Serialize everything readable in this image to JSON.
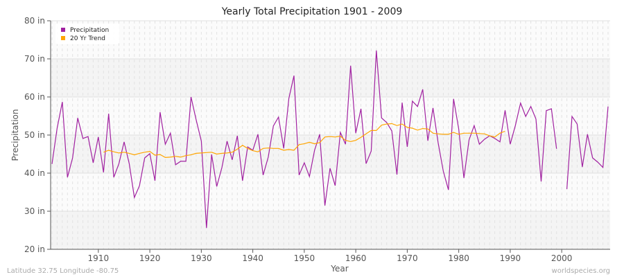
{
  "chart_data": {
    "type": "line",
    "title": "Yearly Total Precipitation 1901 - 2009",
    "xlabel": "Year",
    "ylabel": "Precipitation",
    "xlim": [
      1901,
      2009
    ],
    "ylim": [
      20,
      80
    ],
    "y_ticks": [
      20,
      30,
      40,
      50,
      60,
      70,
      80
    ],
    "y_tick_labels": [
      "20 in",
      "30 in",
      "40 in",
      "50 in",
      "60 in",
      "70 in",
      "80 in"
    ],
    "x_ticks": [
      1910,
      1920,
      1930,
      1940,
      1950,
      1960,
      1970,
      1980,
      1990,
      2000
    ],
    "x_tick_labels": [
      "1910",
      "1920",
      "1930",
      "1940",
      "1950",
      "1960",
      "1970",
      "1980",
      "1990",
      "2000"
    ],
    "grid": true,
    "legend_position": "top-left",
    "series": [
      {
        "name": "Precipitation",
        "color": "#a020a0",
        "start_year": 1901,
        "values": [
          42.4,
          51.8,
          58.7,
          38.9,
          44.0,
          54.5,
          49.1,
          49.6,
          42.7,
          49.5,
          40.2,
          55.6,
          38.9,
          42.5,
          48.2,
          42.5,
          33.6,
          36.7,
          44.0,
          45.1,
          38.0,
          56.0,
          47.6,
          50.5,
          42.2,
          43.1,
          43.1,
          60.0,
          54.0,
          48.4,
          25.6,
          44.9,
          36.5,
          41.5,
          48.4,
          43.5,
          49.8,
          38.0,
          46.9,
          46.0,
          50.2,
          39.5,
          44.2,
          52.4,
          54.7,
          46.5,
          59.6,
          65.6,
          39.5,
          42.7,
          39.1,
          46.0,
          50.2,
          31.5,
          41.3,
          36.7,
          50.7,
          47.6,
          68.2,
          50.5,
          56.9,
          42.5,
          45.8,
          72.2,
          54.5,
          53.3,
          51.1,
          39.6,
          58.5,
          46.9,
          58.9,
          57.5,
          62.0,
          48.5,
          57.1,
          48.0,
          40.5,
          35.6,
          59.5,
          51.6,
          38.7,
          48.7,
          52.5,
          47.6,
          48.9,
          49.8,
          49.1,
          48.2,
          56.5,
          47.6,
          52.5,
          58.4,
          54.9,
          57.5,
          54.2,
          37.8,
          56.4,
          56.9,
          46.4,
          null,
          35.8,
          54.9,
          52.9,
          41.6,
          50.2,
          44.0,
          42.9,
          41.5,
          57.5
        ]
      },
      {
        "name": "20 Yr Trend",
        "color": "#ffa500",
        "start_year": 1911,
        "values": [
          45.5,
          46.0,
          45.6,
          45.3,
          45.5,
          45.2,
          44.8,
          45.2,
          45.5,
          45.7,
          44.7,
          44.9,
          44.1,
          44.2,
          44.4,
          44.2,
          44.6,
          44.8,
          45.2,
          45.3,
          45.4,
          45.5,
          45.0,
          45.2,
          45.3,
          45.5,
          46.3,
          47.3,
          46.5,
          45.9,
          45.6,
          46.5,
          46.6,
          46.5,
          46.5,
          46.0,
          46.2,
          46.0,
          47.5,
          47.7,
          48.1,
          47.7,
          48.0,
          49.5,
          49.6,
          49.5,
          49.7,
          48.6,
          48.3,
          48.6,
          49.4,
          50.3,
          51.2,
          51.2,
          52.6,
          52.9,
          53.0,
          52.5,
          52.9,
          52.0,
          51.8,
          51.3,
          51.7,
          51.6,
          50.5,
          50.3,
          50.2,
          50.2,
          50.7,
          50.2,
          50.5,
          50.5,
          50.5,
          50.4,
          50.3,
          49.8,
          49.5,
          50.5,
          51.0
        ]
      }
    ]
  },
  "footer": {
    "location": "Latitude 32.75 Longitude -80.75",
    "source": "worldspecies.org"
  }
}
